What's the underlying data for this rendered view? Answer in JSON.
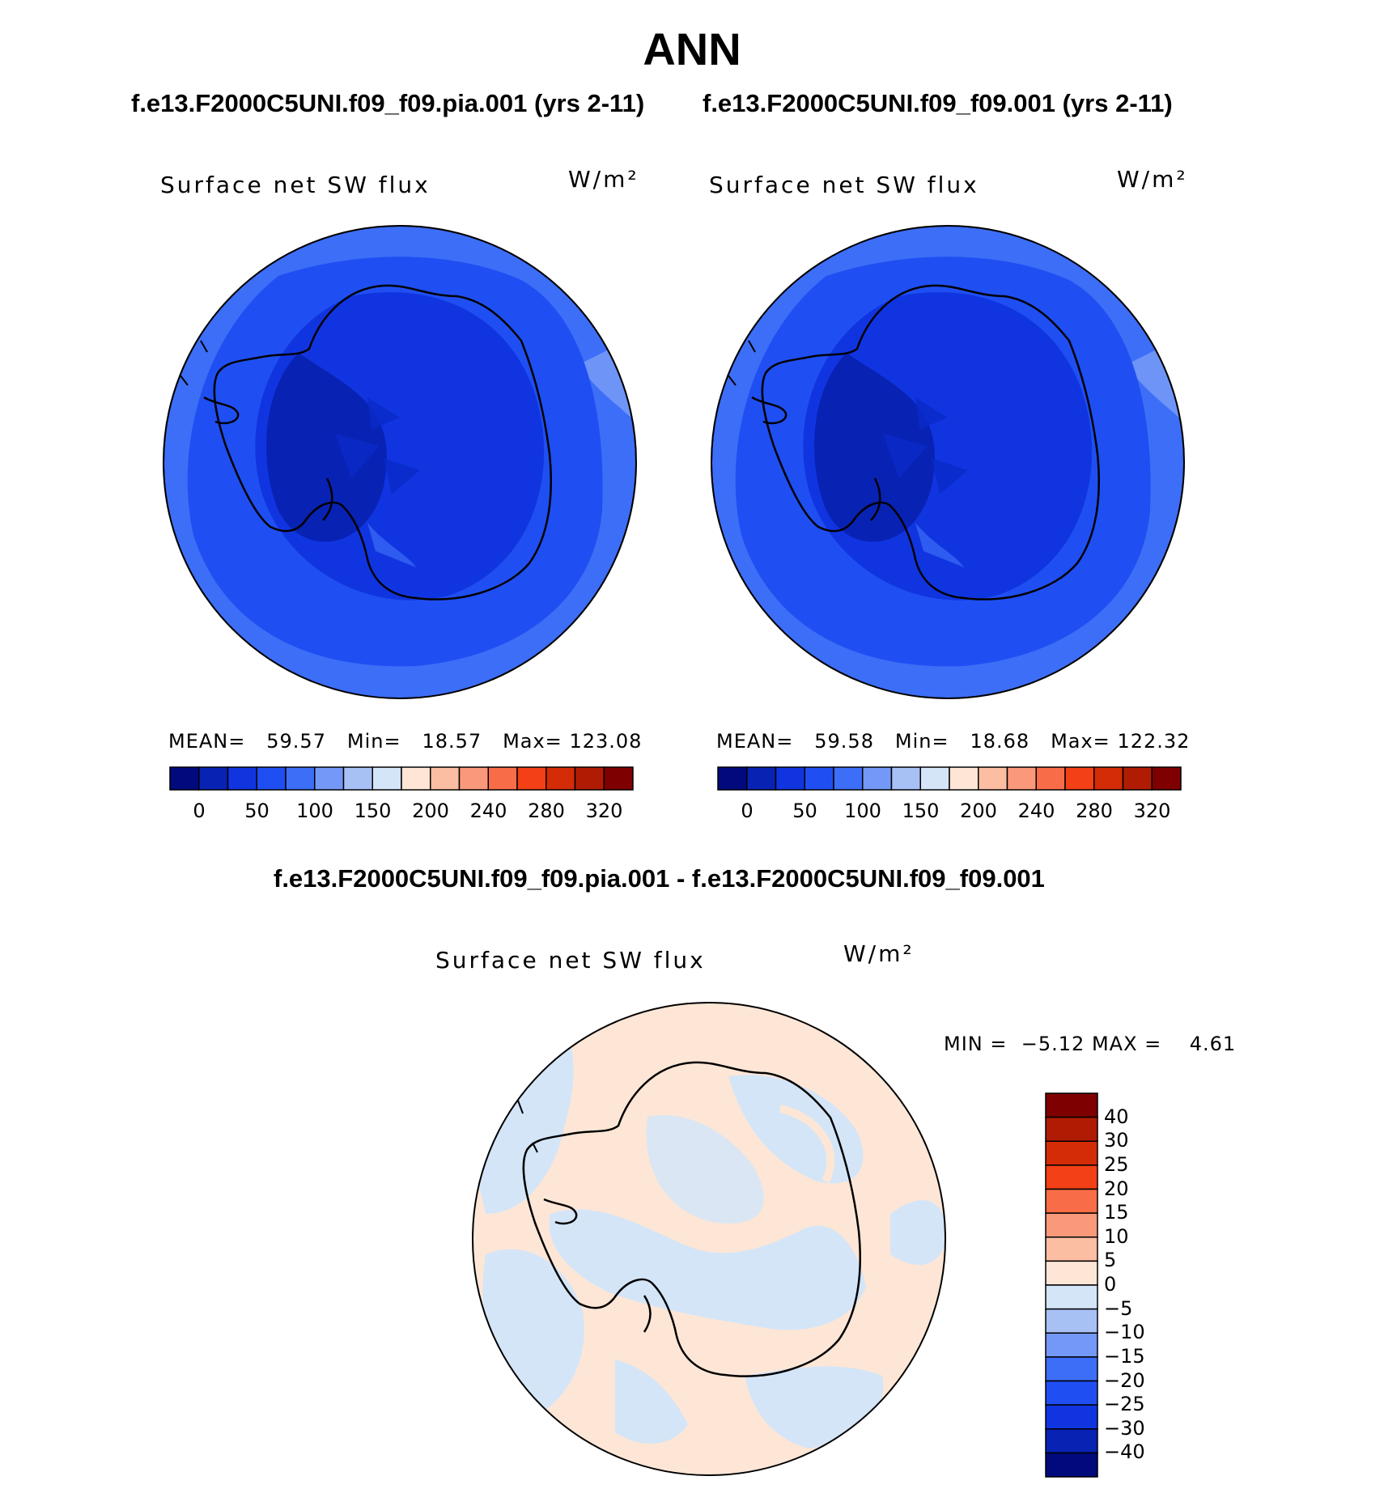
{
  "page_title": "ANN",
  "panels": [
    {
      "case_title": "f.e13.F2000C5UNI.f09_f09.pia.001 (yrs 2-11)",
      "variable": "Surface net SW flux",
      "units": "W/m²",
      "stats": {
        "mean_label": "MEAN=",
        "mean": "59.57",
        "min_label": "Min=",
        "min": "18.57",
        "max_label": "Max=",
        "max": "123.08"
      }
    },
    {
      "case_title": "f.e13.F2000C5UNI.f09_f09.001 (yrs 2-11)",
      "variable": "Surface net SW flux",
      "units": "W/m²",
      "stats": {
        "mean_label": "MEAN=",
        "mean": "59.58",
        "min_label": "Min=",
        "min": "18.68",
        "max_label": "Max=",
        "max": "122.32"
      }
    }
  ],
  "abs_colorbar": {
    "colors": [
      "#000a7d",
      "#0822b4",
      "#1035e0",
      "#1f4ff2",
      "#3d6ef7",
      "#7398f7",
      "#a8c1f5",
      "#d4e5f8",
      "#fde6d6",
      "#fbbea3",
      "#f9997a",
      "#f86d47",
      "#f34016",
      "#d42c06",
      "#b01c03",
      "#7e0000"
    ],
    "labels": [
      "0",
      "50",
      "100",
      "150",
      "200",
      "240",
      "280",
      "320"
    ]
  },
  "diff": {
    "title": "f.e13.F2000C5UNI.f09_f09.pia.001 - f.e13.F2000C5UNI.f09_f09.001",
    "variable": "Surface net SW flux",
    "units": "W/m²",
    "min_label": "MIN =",
    "min": "−5.12",
    "max_label": "MAX =",
    "max": "4.61",
    "colorbar_colors_top_to_bottom": [
      "#7e0000",
      "#b01c03",
      "#d42c06",
      "#f34016",
      "#f86d47",
      "#f9997a",
      "#fbbea3",
      "#fde6d6",
      "#d4e5f8",
      "#a8c1f5",
      "#7398f7",
      "#3d6ef7",
      "#1f4ff2",
      "#1035e0",
      "#0822b4",
      "#000a7d"
    ],
    "colorbar_labels_top_to_bottom": [
      "40",
      "30",
      "25",
      "20",
      "15",
      "10",
      "5",
      "0",
      "−5",
      "−10",
      "−15",
      "−20",
      "−25",
      "−30",
      "−40"
    ]
  }
}
